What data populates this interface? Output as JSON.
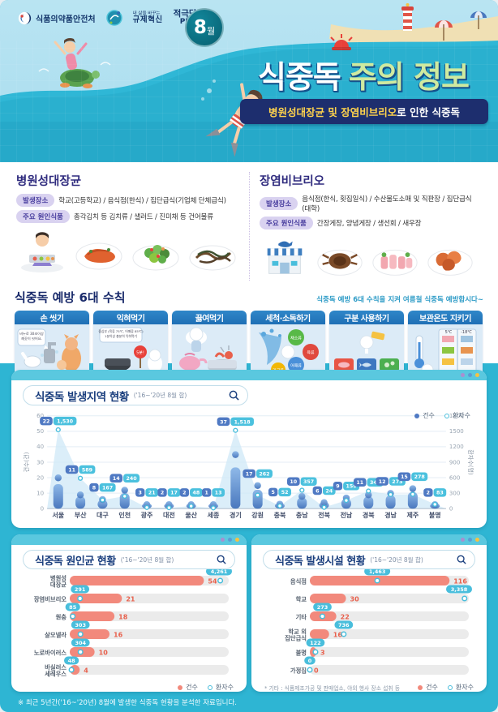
{
  "colors": {
    "teal_bg": "#2eb5d3",
    "navy": "#1d2e6e",
    "title_green": "#cfeaa0",
    "subtitle_yellow": "#ffd34d",
    "case_blue": "#4f79c3",
    "patient_cyan": "#49bedc",
    "bar_salmon": "#f2897c",
    "value_red": "#e8604c",
    "area_fill": "#cfe8f7"
  },
  "header": {
    "agency": "식품의약품안전처",
    "badge1_top": "내 삶을 바꾸는",
    "badge1": "규제혁신",
    "badge2_top": "적극당당",
    "badge2": "PRIDE",
    "month": "8",
    "month_suffix": "월",
    "title_main": "식중독",
    "title_accent": "주의 정보",
    "subtitle_highlight": "병원성대장균 및 장염비브리오",
    "subtitle_rest": "로 인한 식중독"
  },
  "pathogens": [
    {
      "title": "병원성대장균",
      "place_label": "발생장소",
      "place": "학교(고등학교) / 음식점(한식) / 집단급식(기업체 단체급식)",
      "food_label": "주요 원인식품",
      "food": "총각김치 등 김치류 / 샐러드 / 진미채 등 건어물류",
      "photos": [
        "급식 배식",
        "김치류",
        "샐러드",
        "건어물류"
      ]
    },
    {
      "title": "장염비브리오",
      "place_label": "발생장소",
      "place": "음식점(한식, 횟집일식) / 수산물도소매 및 직판장 / 집단급식(대학)",
      "food_label": "주요 원인식품",
      "food": "간장게장, 양념게장 / 생선회 / 새우장",
      "photos": [
        "수산시장",
        "게장",
        "생선회",
        "새우장"
      ]
    }
  ],
  "prevention": {
    "heading": "식중독 예방 6대 수칙",
    "note": "식중독 예방 6대 수칙을 지켜 여름철 식중독 예방합시다~",
    "cards": [
      {
        "title": "손 씻기",
        "bubble": "비누로 30초이상 깨끗이 씻어요."
      },
      {
        "title": "익혀먹기",
        "bubble": "중심부 (육류 75℃, 어패류 85℃) 1분이상 충분히 익혀먹기"
      },
      {
        "title": "끓여먹기",
        "bubble": ""
      },
      {
        "title": "세척·소독하기",
        "bubble": "",
        "tags": [
          "채소류",
          "육류",
          "어패류",
          "가금류"
        ]
      },
      {
        "title": "구분 사용하기",
        "bubble": ""
      },
      {
        "title": "보관온도 지키기",
        "bubble": ""
      }
    ]
  },
  "footer": {
    "note": "※ 최근 5년간('16~'20년) 8월에 발생한 식중독 현황을 분석한 자료입니다."
  },
  "chart_data": [
    {
      "type": "bar",
      "title": "식중독 발생지역 현황",
      "subtitle": "('16~'20년 8월 합)",
      "legend": [
        "건수",
        "환자수"
      ],
      "ylabel_left": "건수(건)",
      "ylabel_right": "환자수(명)",
      "ylim_left": [
        0,
        60
      ],
      "yticks_left": [
        0,
        10,
        20,
        30,
        40,
        50,
        60
      ],
      "ylim_right": [
        0,
        1800
      ],
      "yticks_right": [
        0,
        300,
        600,
        900,
        1200,
        1500,
        1800
      ],
      "categories": [
        "서울",
        "부산",
        "대구",
        "인천",
        "광주",
        "대전",
        "울산",
        "세종",
        "경기",
        "강원",
        "충북",
        "충남",
        "전북",
        "전남",
        "경북",
        "경남",
        "제주",
        "불명"
      ],
      "series": [
        {
          "name": "건수",
          "values": [
            22,
            11,
            8,
            14,
            3,
            2,
            2,
            1,
            37,
            17,
            5,
            10,
            6,
            9,
            11,
            12,
            15,
            2
          ]
        },
        {
          "name": "환자수",
          "values": [
            1530,
            589,
            167,
            240,
            21,
            17,
            48,
            13,
            1518,
            262,
            52,
            357,
            24,
            159,
            341,
            273,
            278,
            83
          ]
        }
      ],
      "patients_display": [
        "1,530",
        "589",
        "167",
        "240",
        "21",
        "17",
        "48",
        "13",
        "1,518",
        "262",
        "52",
        "357",
        "24",
        "159",
        "341",
        "273",
        "278",
        "83"
      ]
    },
    {
      "type": "bar",
      "title": "식중독 원인균 현황",
      "subtitle": "('16~'20년 8월 합)",
      "legend": [
        "건수",
        "환자수"
      ],
      "categories": [
        "병원성대장균",
        "장염비브리오",
        "원충",
        "살모넬라",
        "노로바이러스",
        "바실러스 세레우스"
      ],
      "label_lines": [
        [
          "병원성",
          "대장균"
        ],
        [
          "장염비브리오"
        ],
        [
          "원충"
        ],
        [
          "살모넬라"
        ],
        [
          "노로바이러스"
        ],
        [
          "바실러스",
          "세레우스"
        ]
      ],
      "cases": [
        54,
        21,
        18,
        16,
        10,
        4
      ],
      "patients": [
        4261,
        291,
        85,
        303,
        304,
        48
      ],
      "patients_display": [
        "4,261",
        "291",
        "85",
        "303",
        "304",
        "48"
      ],
      "case_axis_max": 64,
      "patient_axis_max": 4500
    },
    {
      "type": "bar",
      "title": "식중독 발생시설 현황",
      "subtitle": "('16~'20년 8월 합)",
      "legend": [
        "건수",
        "환자수"
      ],
      "footnote": "* 기타 : 식품제조가공 및 판매업소, 야외 행사 장소 섭취 등",
      "categories": [
        "음식점",
        "학교",
        "기타",
        "학교 외 집단급식",
        "불명",
        "가정집"
      ],
      "label_lines": [
        [
          "음식점"
        ],
        [
          "학교"
        ],
        [
          "기타"
        ],
        [
          "학교 외",
          "집단급식"
        ],
        [
          "불명"
        ],
        [
          "가정집"
        ]
      ],
      "cases": [
        116,
        30,
        22,
        16,
        3,
        0
      ],
      "patients": [
        1463,
        3358,
        273,
        736,
        122,
        0
      ],
      "patients_display": [
        "1,463",
        "3,358",
        "273",
        "736",
        "122",
        "0"
      ],
      "case_axis_max": 132,
      "patient_axis_max": 3450
    }
  ]
}
